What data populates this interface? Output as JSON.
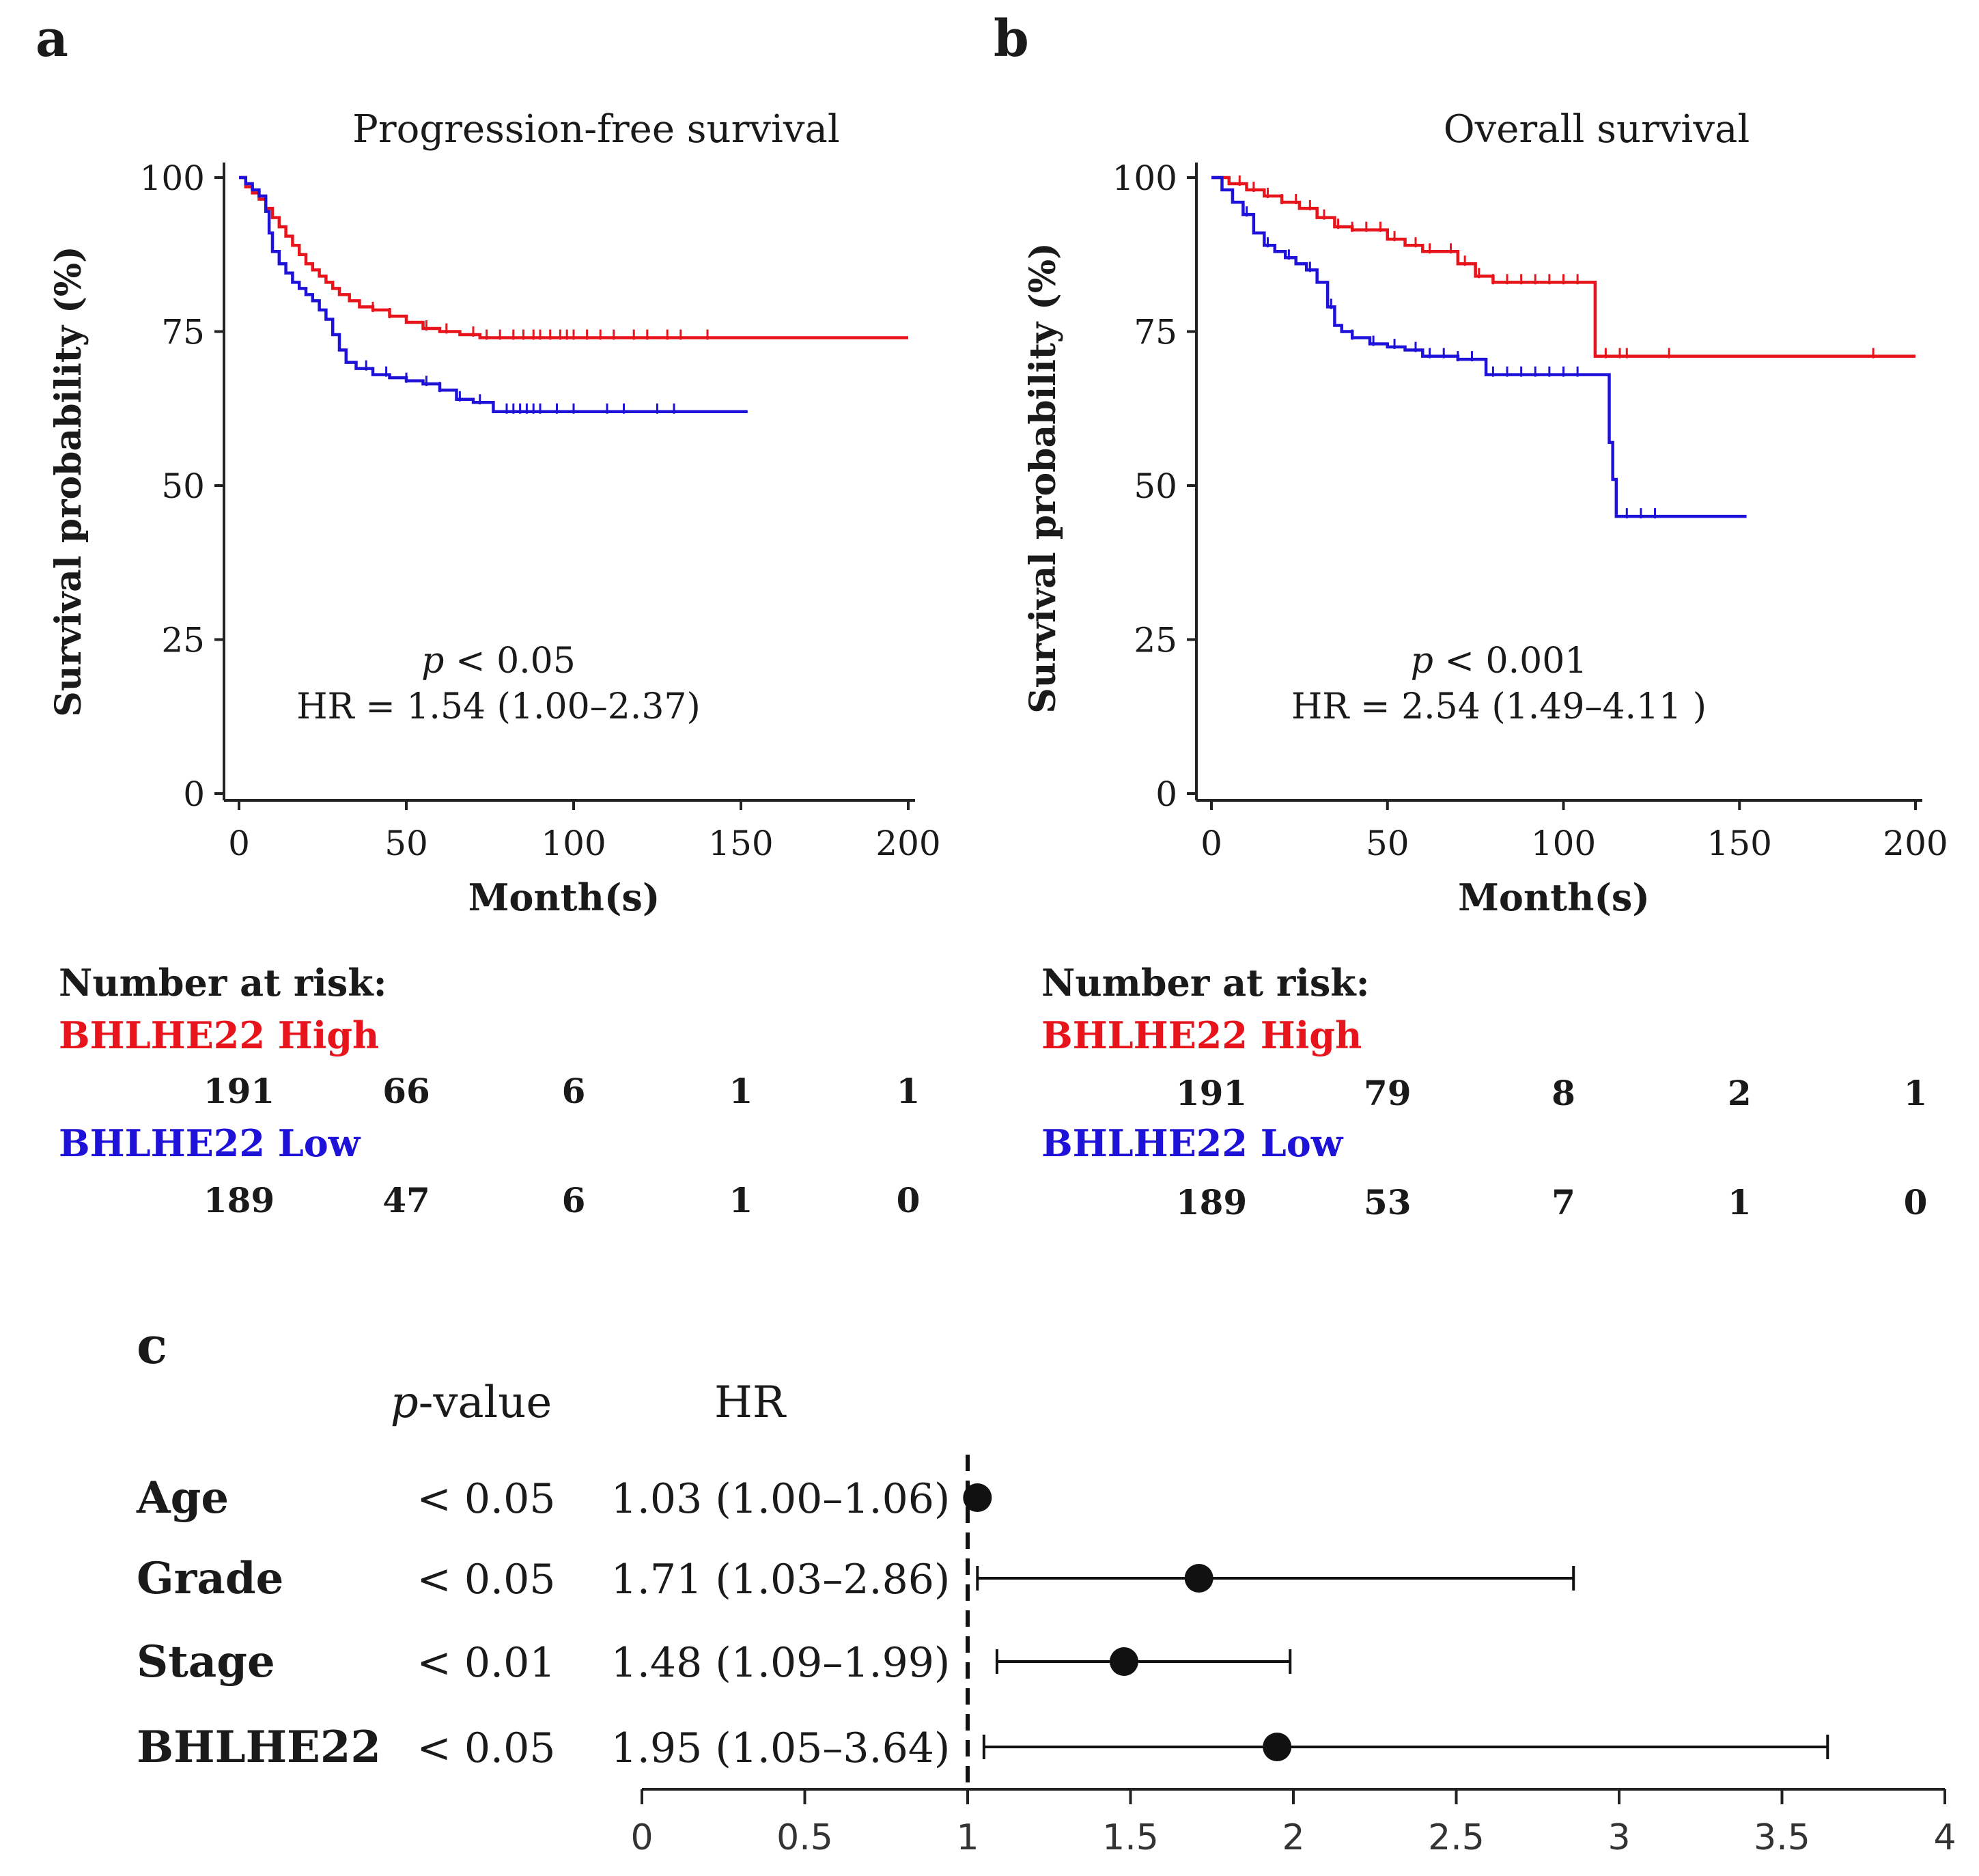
{
  "colors": {
    "high": "#e8141b",
    "low": "#1f12d8",
    "ink": "#1a1a1a"
  },
  "chart_data": [
    {
      "panel": "a",
      "type": "line",
      "title": "Progression-free survival",
      "xlabel": "Month(s)",
      "ylabel": "Survival probability (%)",
      "xlim": [
        0,
        200
      ],
      "ylim": [
        0,
        100
      ],
      "xticks": [
        0,
        50,
        100,
        150,
        200
      ],
      "yticks": [
        0,
        25,
        50,
        75,
        100
      ],
      "xtick_labels": [
        "0",
        "50",
        "100",
        "150",
        "200"
      ],
      "ytick_labels": [
        "0",
        "25",
        "50",
        "75",
        "100"
      ],
      "p_label": "p",
      "p_text": " < 0.05",
      "hr_text": "HR = 1.54 (1.00–2.37)",
      "series": [
        {
          "name": "BHLHE22 High",
          "color_key": "high",
          "x": [
            0,
            2,
            4,
            6,
            8,
            10,
            12,
            14,
            16,
            18,
            20,
            22,
            24,
            26,
            28,
            30,
            33,
            36,
            40,
            45,
            50,
            55,
            60,
            66,
            72,
            80,
            100,
            120,
            150,
            200
          ],
          "y": [
            100,
            98.5,
            97.5,
            96.5,
            95,
            93.5,
            92,
            90.5,
            89,
            87.5,
            86,
            85,
            84,
            83,
            82,
            81,
            80,
            79,
            78.5,
            77.5,
            76.5,
            75.5,
            75,
            74.5,
            74,
            74,
            74,
            74,
            74,
            74
          ],
          "censor_x": [
            40,
            45,
            56,
            62,
            70,
            74,
            78,
            82,
            85,
            88,
            90,
            93,
            96,
            98,
            100,
            104,
            108,
            112,
            118,
            122,
            128,
            132,
            140
          ]
        },
        {
          "name": "BHLHE22 Low",
          "color_key": "low",
          "x": [
            0,
            2,
            4,
            6,
            8,
            9,
            10,
            12,
            14,
            16,
            18,
            20,
            22,
            24,
            26,
            28,
            30,
            32,
            35,
            40,
            45,
            50,
            55,
            60,
            65,
            70,
            76,
            80,
            100,
            130,
            152
          ],
          "y": [
            100,
            99,
            98,
            97,
            94.5,
            91,
            88,
            86,
            84.5,
            83,
            82,
            81,
            80,
            78.5,
            77,
            74.5,
            72,
            70,
            69,
            68,
            67.5,
            67,
            66.5,
            65.5,
            64,
            63.5,
            62,
            62,
            62,
            62,
            62
          ],
          "censor_x": [
            38,
            44,
            50,
            56,
            60,
            66,
            72,
            80,
            82,
            84,
            86,
            88,
            90,
            95,
            100,
            110,
            115,
            125,
            130
          ]
        }
      ],
      "risk_table": {
        "header": "Number at risk:",
        "x": [
          0,
          50,
          100,
          150,
          200
        ],
        "groups": [
          {
            "label": "BHLHE22 High",
            "color_key": "high",
            "values": [
              "191",
              "66",
              "6",
              "1",
              "1"
            ]
          },
          {
            "label": "BHLHE22 Low",
            "color_key": "low",
            "values": [
              "189",
              "47",
              "6",
              "1",
              "0"
            ]
          }
        ]
      }
    },
    {
      "panel": "b",
      "type": "line",
      "title": "Overall survival",
      "xlabel": "Month(s)",
      "ylabel": "Survival probability (%)",
      "xlim": [
        0,
        200
      ],
      "ylim": [
        0,
        100
      ],
      "xticks": [
        0,
        50,
        100,
        150,
        200
      ],
      "yticks": [
        0,
        25,
        50,
        75,
        100
      ],
      "xtick_labels": [
        "0",
        "50",
        "100",
        "150",
        "200"
      ],
      "ytick_labels": [
        "0",
        "25",
        "50",
        "75",
        "100"
      ],
      "p_label": "p",
      "p_text": " < 0.001",
      "hr_text": "HR = 2.54 (1.49–4.11 )",
      "series": [
        {
          "name": "BHLHE22 High",
          "color_key": "high",
          "x": [
            0,
            5,
            10,
            15,
            20,
            25,
            30,
            35,
            40,
            50,
            55,
            60,
            70,
            75,
            80,
            100,
            108,
            109,
            115,
            200
          ],
          "y": [
            100,
            99,
            98,
            97,
            96,
            95,
            93.5,
            92,
            91.5,
            90,
            89,
            88,
            86,
            84,
            83,
            83,
            83,
            71,
            71,
            71
          ],
          "censor_x": [
            8,
            12,
            16,
            20,
            24,
            28,
            32,
            36,
            40,
            44,
            48,
            52,
            58,
            62,
            68,
            72,
            76,
            80,
            84,
            88,
            92,
            96,
            100,
            104,
            112,
            116,
            118,
            130,
            188
          ]
        },
        {
          "name": "BHLHE22 Low",
          "color_key": "low",
          "x": [
            0,
            3,
            6,
            9,
            12,
            15,
            18,
            21,
            24,
            27,
            30,
            33,
            35,
            37,
            40,
            45,
            50,
            55,
            60,
            70,
            78,
            90,
            112,
            113,
            114,
            115,
            152
          ],
          "y": [
            100,
            98,
            96,
            94,
            91,
            89,
            88,
            87,
            86,
            85,
            83,
            79,
            76,
            75,
            74,
            73,
            72.5,
            72,
            71,
            70.5,
            68,
            68,
            68,
            57,
            51,
            45,
            45
          ],
          "censor_x": [
            10,
            16,
            22,
            28,
            34,
            40,
            46,
            52,
            58,
            62,
            66,
            70,
            74,
            80,
            84,
            88,
            92,
            96,
            100,
            104,
            118,
            122,
            126
          ]
        }
      ],
      "risk_table": {
        "header": "Number at risk:",
        "x": [
          0,
          50,
          100,
          150,
          200
        ],
        "groups": [
          {
            "label": "BHLHE22 High",
            "color_key": "high",
            "values": [
              "191",
              "79",
              "8",
              "2",
              "1"
            ]
          },
          {
            "label": "BHLHE22 Low",
            "color_key": "low",
            "values": [
              "189",
              "53",
              "7",
              "1",
              "0"
            ]
          }
        ]
      }
    },
    {
      "panel": "c",
      "type": "scatter",
      "subtype": "forest",
      "col_pvalue_label": "p",
      "col_pvalue_suffix": "-value",
      "col_hr": "HR",
      "xlim": [
        0,
        4
      ],
      "xticks": [
        0,
        0.5,
        1,
        1.5,
        2,
        2.5,
        3,
        3.5,
        4
      ],
      "xtick_labels": [
        "0",
        "0.5",
        "1",
        "1.5",
        "2",
        "2.5",
        "3",
        "3.5",
        "4"
      ],
      "reference_line": 1,
      "rows": [
        {
          "label": "Age",
          "pvalue": "< 0.05",
          "hr_text": "1.03 (1.00–1.06)",
          "hr": 1.03,
          "lo": 1.0,
          "hi": 1.06
        },
        {
          "label": "Grade",
          "pvalue": "< 0.05",
          "hr_text": "1.71 (1.03–2.86)",
          "hr": 1.71,
          "lo": 1.03,
          "hi": 2.86
        },
        {
          "label": "Stage",
          "pvalue": "< 0.01",
          "hr_text": "1.48 (1.09–1.99)",
          "hr": 1.48,
          "lo": 1.09,
          "hi": 1.99
        },
        {
          "label": "BHLHE22",
          "pvalue": "< 0.05",
          "hr_text": "1.95 (1.05–3.64)",
          "hr": 1.95,
          "lo": 1.05,
          "hi": 3.64
        }
      ]
    }
  ],
  "panel_labels": {
    "a": "a",
    "b": "b",
    "c": "c"
  }
}
